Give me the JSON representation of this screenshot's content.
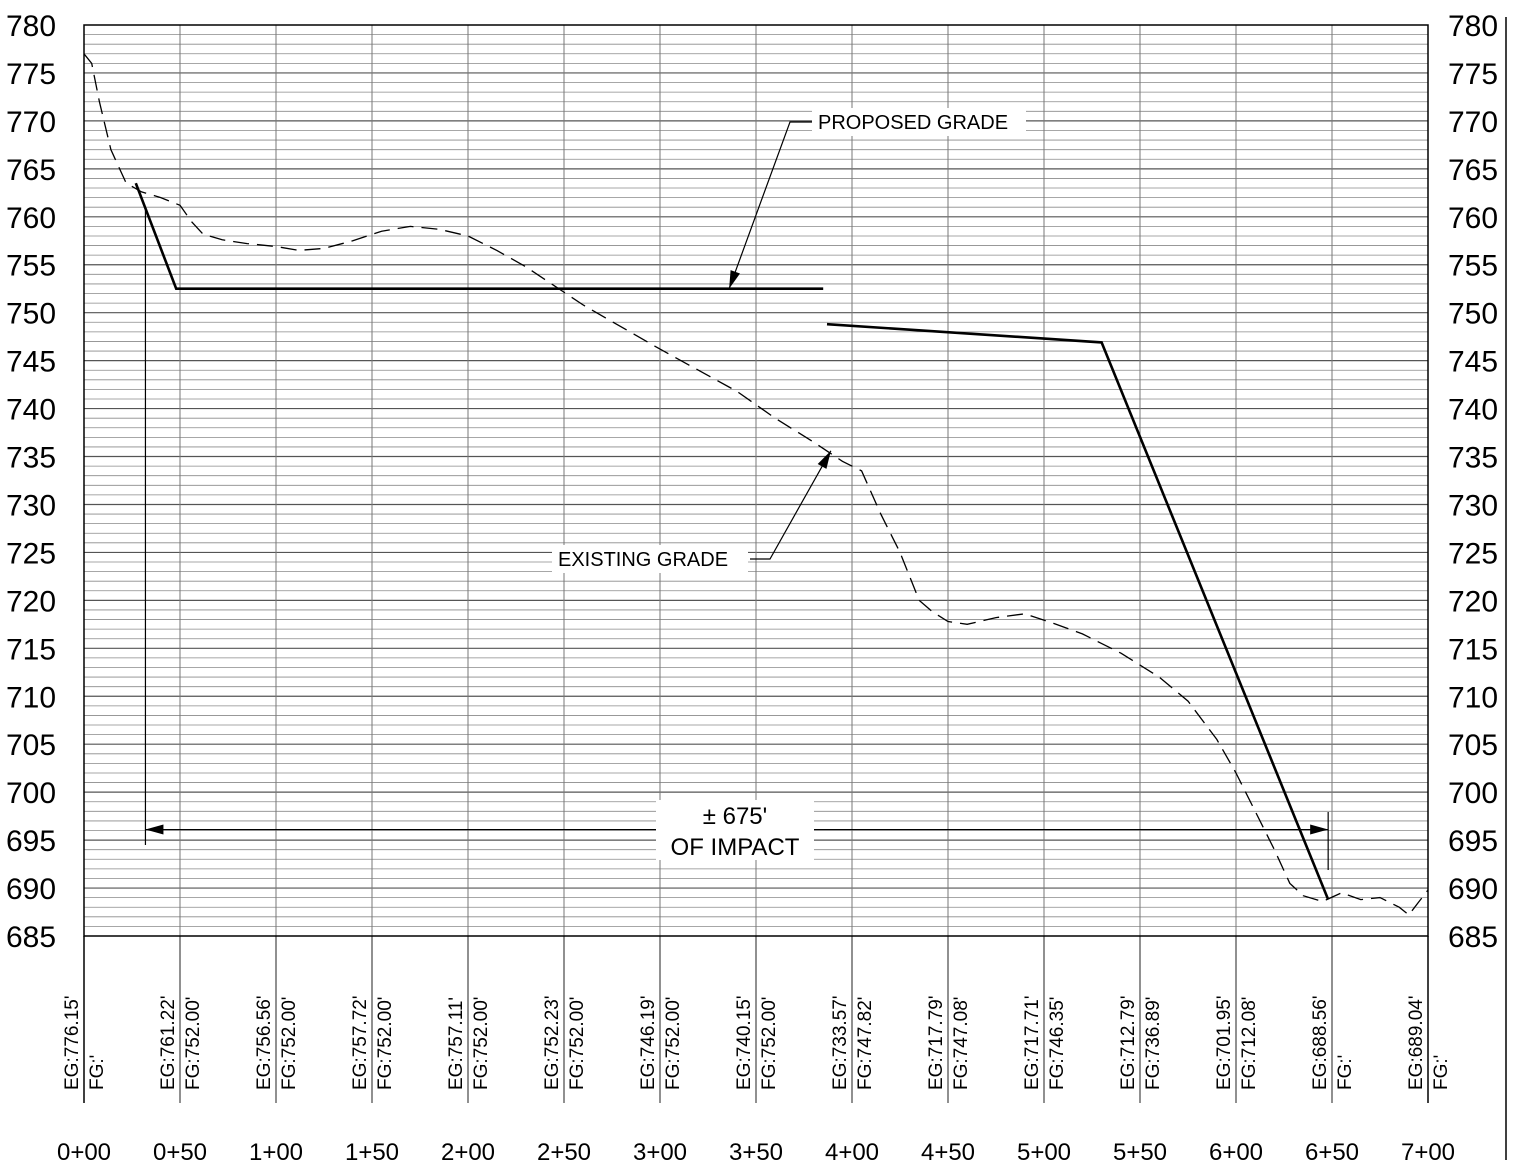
{
  "chart_data": {
    "type": "line",
    "title": "",
    "xlabel": "",
    "ylabel": "",
    "xlim": [
      0,
      700
    ],
    "ylim": [
      685,
      780
    ],
    "y_ticks": [
      "780",
      "775",
      "770",
      "765",
      "760",
      "755",
      "750",
      "745",
      "740",
      "735",
      "730",
      "725",
      "720",
      "715",
      "710",
      "705",
      "700",
      "695",
      "690",
      "685"
    ],
    "x_ticks": [
      {
        "x": 0,
        "label": "0+00"
      },
      {
        "x": 50,
        "label": "0+50"
      },
      {
        "x": 100,
        "label": "1+00"
      },
      {
        "x": 150,
        "label": "1+50"
      },
      {
        "x": 200,
        "label": "2+00"
      },
      {
        "x": 250,
        "label": "2+50"
      },
      {
        "x": 300,
        "label": "3+00"
      },
      {
        "x": 350,
        "label": "3+50"
      },
      {
        "x": 400,
        "label": "4+00"
      },
      {
        "x": 450,
        "label": "4+50"
      },
      {
        "x": 500,
        "label": "5+00"
      },
      {
        "x": 550,
        "label": "5+50"
      },
      {
        "x": 600,
        "label": "6+00"
      },
      {
        "x": 650,
        "label": "6+50"
      },
      {
        "x": 700,
        "label": "7+00"
      }
    ],
    "station_labels": [
      {
        "x": 0,
        "eg": "EG:776.15'",
        "fg": "FG:'"
      },
      {
        "x": 50,
        "eg": "EG:761.22'",
        "fg": "FG:752.00'"
      },
      {
        "x": 100,
        "eg": "EG:756.56'",
        "fg": "FG:752.00'"
      },
      {
        "x": 150,
        "eg": "EG:757.72'",
        "fg": "FG:752.00'"
      },
      {
        "x": 200,
        "eg": "EG:757.11'",
        "fg": "FG:752.00'"
      },
      {
        "x": 250,
        "eg": "EG:752.23'",
        "fg": "FG:752.00'"
      },
      {
        "x": 300,
        "eg": "EG:746.19'",
        "fg": "FG:752.00'"
      },
      {
        "x": 350,
        "eg": "EG:740.15'",
        "fg": "FG:752.00'"
      },
      {
        "x": 400,
        "eg": "EG:733.57'",
        "fg": "FG:747.82'"
      },
      {
        "x": 450,
        "eg": "EG:717.79'",
        "fg": "FG:747.08'"
      },
      {
        "x": 500,
        "eg": "EG:717.71'",
        "fg": "FG:746.35'"
      },
      {
        "x": 550,
        "eg": "EG:712.79'",
        "fg": "FG:736.89'"
      },
      {
        "x": 600,
        "eg": "EG:701.95'",
        "fg": "FG:712.08'"
      },
      {
        "x": 650,
        "eg": "EG:688.56'",
        "fg": "FG:'"
      },
      {
        "x": 700,
        "eg": "EG:689.04'",
        "fg": "FG:'"
      }
    ],
    "series": [
      {
        "name": "EXISTING GRADE",
        "style": "dashed",
        "points": [
          [
            0,
            777
          ],
          [
            4,
            776
          ],
          [
            8,
            772
          ],
          [
            14,
            767
          ],
          [
            22,
            763.5
          ],
          [
            30,
            762.6
          ],
          [
            40,
            762
          ],
          [
            50,
            761.2
          ],
          [
            56,
            759.5
          ],
          [
            62,
            758.2
          ],
          [
            72,
            757.6
          ],
          [
            85,
            757.2
          ],
          [
            100,
            756.9
          ],
          [
            112,
            756.5
          ],
          [
            125,
            756.7
          ],
          [
            140,
            757.5
          ],
          [
            155,
            758.5
          ],
          [
            170,
            759
          ],
          [
            185,
            758.7
          ],
          [
            200,
            758
          ],
          [
            215,
            756.5
          ],
          [
            230,
            754.8
          ],
          [
            245,
            752.8
          ],
          [
            260,
            750.8
          ],
          [
            280,
            748.5
          ],
          [
            300,
            746.2
          ],
          [
            320,
            744
          ],
          [
            340,
            741.8
          ],
          [
            360,
            739
          ],
          [
            380,
            736.5
          ],
          [
            395,
            734.5
          ],
          [
            405,
            733.5
          ],
          [
            415,
            729
          ],
          [
            425,
            725
          ],
          [
            435,
            720
          ],
          [
            442,
            718.8
          ],
          [
            450,
            717.8
          ],
          [
            460,
            717.5
          ],
          [
            475,
            718.2
          ],
          [
            490,
            718.6
          ],
          [
            505,
            717.6
          ],
          [
            520,
            716.5
          ],
          [
            540,
            714.5
          ],
          [
            560,
            712
          ],
          [
            575,
            709.5
          ],
          [
            590,
            705.5
          ],
          [
            600,
            702
          ],
          [
            610,
            698
          ],
          [
            620,
            694
          ],
          [
            628,
            690.5
          ],
          [
            635,
            689.2
          ],
          [
            645,
            688.6
          ],
          [
            655,
            689.5
          ],
          [
            665,
            688.8
          ],
          [
            675,
            689
          ],
          [
            685,
            688
          ],
          [
            690,
            687.2
          ],
          [
            695,
            688.5
          ],
          [
            700,
            689.8
          ]
        ]
      },
      {
        "name": "PROPOSED GRADE",
        "style": "solid",
        "segments": [
          [
            [
              27,
              763.5
            ],
            [
              48,
              752.5
            ],
            [
              385,
              752.5
            ]
          ],
          [
            [
              387,
              748.8
            ],
            [
              530,
              746.9
            ],
            [
              648,
              688.8
            ]
          ]
        ]
      }
    ],
    "annotations": [
      {
        "text": "PROPOSED GRADE",
        "anchor": [
          336,
          752.5
        ]
      },
      {
        "text": "EXISTING GRADE",
        "anchor": [
          389,
          735.6
        ]
      }
    ],
    "dimension": {
      "line1": "± 675'",
      "line2": "OF IMPACT",
      "from_x": 32,
      "to_x": 648,
      "y": 696.1
    },
    "grid": true,
    "legend": "none"
  }
}
